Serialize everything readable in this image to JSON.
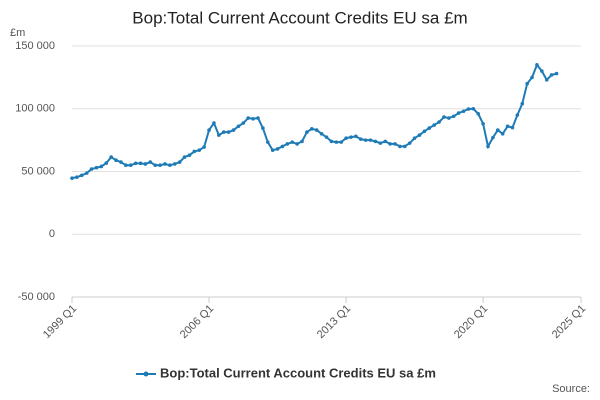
{
  "chart_data": {
    "type": "line",
    "title": "Bop:Total Current Account Credits EU sa £m",
    "y_label": "£m",
    "source": "Source:",
    "x": [
      1999,
      1999.25,
      1999.5,
      1999.75,
      2000,
      2000.25,
      2000.5,
      2000.75,
      2001,
      2001.25,
      2001.5,
      2001.75,
      2002,
      2002.25,
      2002.5,
      2002.75,
      2003,
      2003.25,
      2003.5,
      2003.75,
      2004,
      2004.25,
      2004.5,
      2004.75,
      2005,
      2005.25,
      2005.5,
      2005.75,
      2006,
      2006.25,
      2006.5,
      2006.75,
      2007,
      2007.25,
      2007.5,
      2007.75,
      2008,
      2008.25,
      2008.5,
      2008.75,
      2009,
      2009.25,
      2009.5,
      2009.75,
      2010,
      2010.25,
      2010.5,
      2010.75,
      2011,
      2011.25,
      2011.5,
      2011.75,
      2012,
      2012.25,
      2012.5,
      2012.75,
      2013,
      2013.25,
      2013.5,
      2013.75,
      2014,
      2014.25,
      2014.5,
      2014.75,
      2015,
      2015.25,
      2015.5,
      2015.75,
      2016,
      2016.25,
      2016.5,
      2016.75,
      2017,
      2017.25,
      2017.5,
      2017.75,
      2018,
      2018.25,
      2018.5,
      2018.75,
      2019,
      2019.25,
      2019.5,
      2019.75,
      2020,
      2020.25,
      2020.5,
      2020.75,
      2021,
      2021.25,
      2021.5,
      2021.75,
      2022,
      2022.25,
      2022.5,
      2022.75,
      2023,
      2023.25,
      2023.5,
      2023.75
    ],
    "series": [
      {
        "name": "Bop:Total Current Account Credits EU sa £m",
        "color": "#1f7bb6",
        "values": [
          44700,
          45500,
          47000,
          48700,
          52000,
          53000,
          54000,
          56700,
          61500,
          59000,
          57500,
          55000,
          55000,
          56500,
          56500,
          56000,
          57500,
          55000,
          55000,
          56000,
          55000,
          56000,
          57500,
          61500,
          63000,
          66000,
          67000,
          69500,
          83000,
          88600,
          79000,
          81400,
          81400,
          83000,
          86000,
          88600,
          92600,
          92000,
          92600,
          84600,
          73400,
          67000,
          68000,
          70000,
          72000,
          73400,
          72000,
          74000,
          81400,
          84000,
          83000,
          80000,
          77400,
          74000,
          73400,
          73400,
          76600,
          77400,
          78000,
          75800,
          75000,
          75000,
          74000,
          72600,
          74000,
          72000,
          72000,
          70000,
          70000,
          72600,
          76600,
          79000,
          82000,
          84600,
          87000,
          89400,
          93400,
          92600,
          94000,
          96600,
          98000,
          99800,
          100000,
          96000,
          88000,
          70000,
          77000,
          83000,
          80000,
          86000,
          85000,
          95000,
          104000,
          120000,
          125000,
          135000,
          130000,
          123000,
          127000,
          128000
        ]
      }
    ],
    "xlim": [
      1999,
      2025
    ],
    "xticks": [
      {
        "value": 1999,
        "label": "1999 Q1"
      },
      {
        "value": 2006,
        "label": "2006 Q1"
      },
      {
        "value": 2013,
        "label": "2013 Q1"
      },
      {
        "value": 2020,
        "label": "2020 Q1"
      },
      {
        "value": 2025,
        "label": "2025 Q1"
      }
    ],
    "ylim": [
      -50000,
      150000
    ],
    "yticks": [
      {
        "value": -50000,
        "label": "-50 000"
      },
      0,
      {
        "value": 50000,
        "label": "50 000"
      },
      {
        "value": 100000,
        "label": "100 000"
      },
      {
        "value": 150000,
        "label": "150 000"
      }
    ],
    "grid": true,
    "legend": "bottom"
  }
}
